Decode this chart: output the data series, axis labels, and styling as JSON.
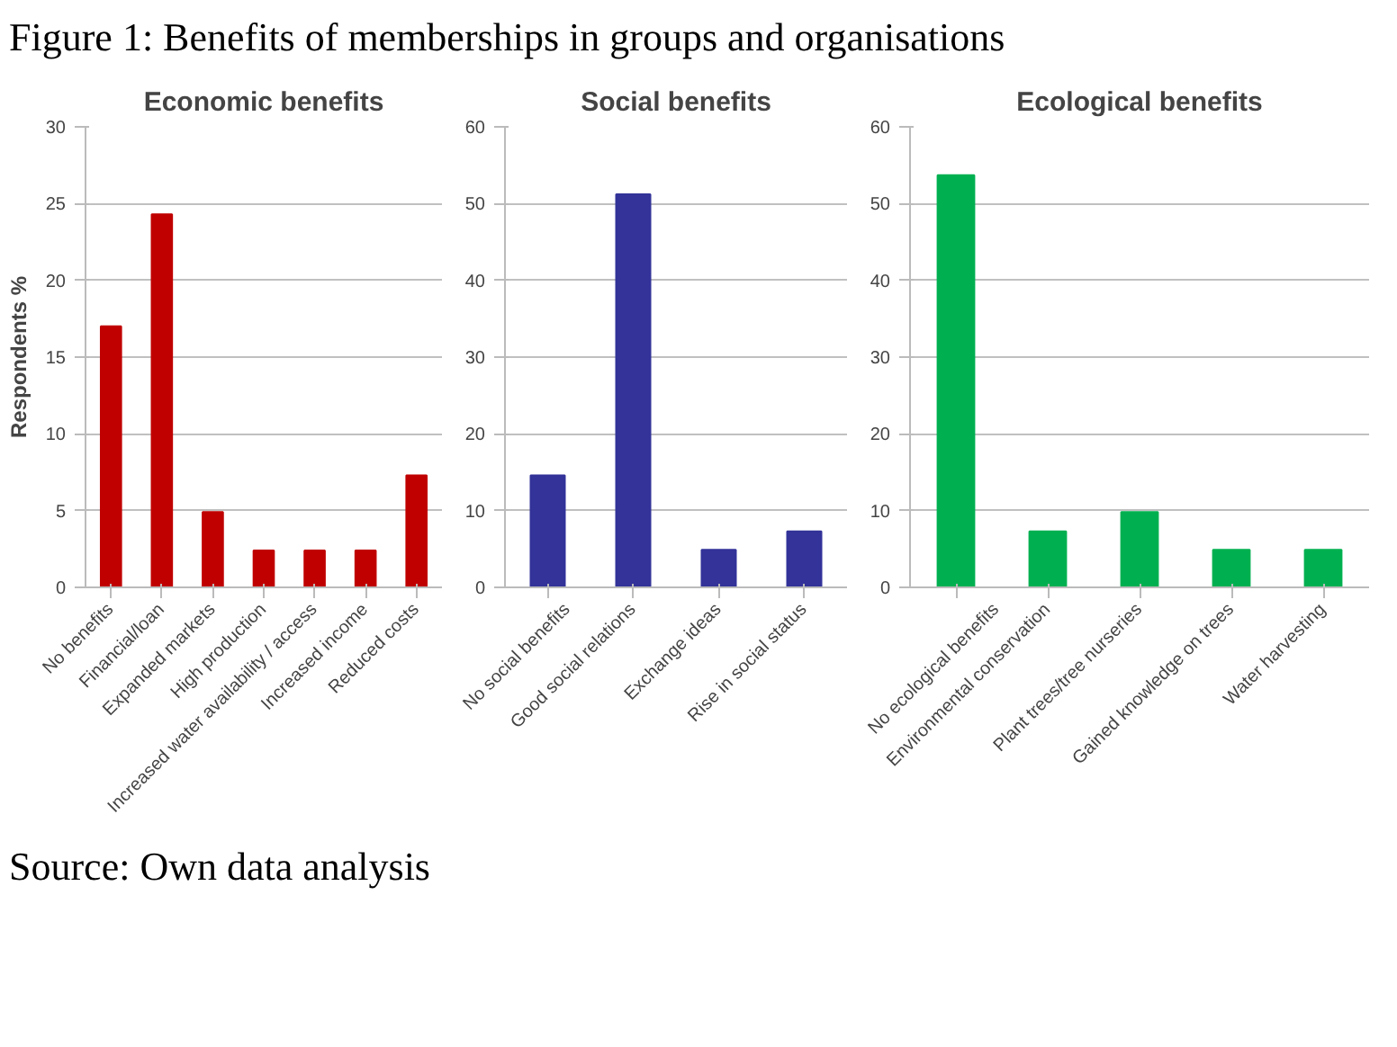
{
  "chart_data": [
    {
      "type": "bar",
      "title": "Economic benefits",
      "ylabel": "Respondents %",
      "categories": [
        "No benefits",
        "Financial/loan",
        "Expanded markets",
        "High production",
        "Increased water availability / access",
        "Increased income",
        "Reduced costs"
      ],
      "values": [
        17,
        24.3,
        4.9,
        2.4,
        2.4,
        2.4,
        7.3
      ],
      "color": "#c00000",
      "ylim": [
        0,
        30
      ],
      "yticks": [
        0,
        5,
        10,
        15,
        20,
        25,
        30
      ],
      "grid": "y",
      "annotations": [
        "Figure 1: Benefits of memberships in groups and organisations"
      ]
    },
    {
      "type": "bar",
      "title": "Social benefits",
      "categories": [
        "No social benefits",
        "Good social relations",
        "Exchange ideas",
        "Rise in social status"
      ],
      "values": [
        14.6,
        51.2,
        4.9,
        7.3
      ],
      "color": "#333399",
      "ylim": [
        0,
        60
      ],
      "yticks": [
        0,
        10,
        20,
        30,
        40,
        50,
        60
      ],
      "grid": "y"
    },
    {
      "type": "bar",
      "title": "Ecological benefits",
      "categories": [
        "No ecological benefits",
        "Environmental conservation",
        "Plant trees/tree nurseries",
        "Gained knowledge on trees",
        "Water harvesting"
      ],
      "values": [
        53.7,
        7.3,
        9.8,
        4.9,
        4.9
      ],
      "color": "#00b050",
      "ylim": [
        0,
        60
      ],
      "yticks": [
        0,
        10,
        20,
        30,
        40,
        50,
        60
      ],
      "grid": "y",
      "annotations": [
        "Source: Own data analysis"
      ]
    }
  ]
}
